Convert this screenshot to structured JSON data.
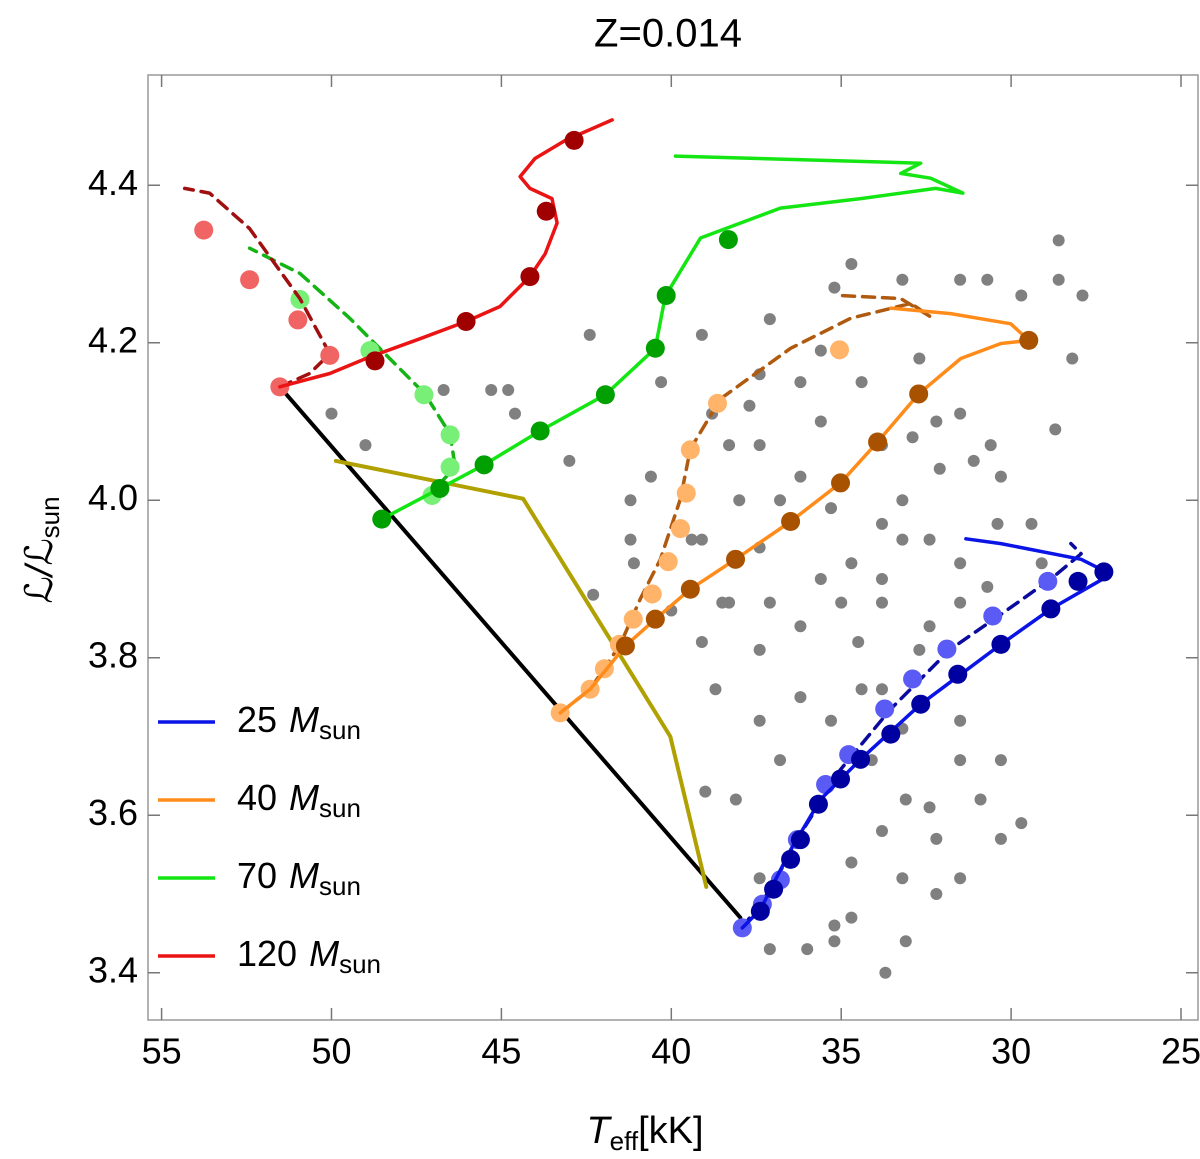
{
  "chart_data": {
    "type": "line",
    "title": "Z=0.014",
    "x_label": {
      "symbol": "T",
      "sub": "eff",
      "unit": "[kK]"
    },
    "y_label": {
      "symbol": "ℒ/ℒ",
      "sub": "sun"
    },
    "xlim": [
      55.4,
      24.5
    ],
    "ylim": [
      3.34,
      4.54
    ],
    "xticks": [
      55,
      50,
      45,
      40,
      35,
      30,
      25
    ],
    "yticks": [
      3.4,
      3.6,
      3.8,
      {
        "value": 4,
        "label": "4.0"
      },
      4.2,
      4.4
    ],
    "legend": "lower left",
    "legend_unit": "M",
    "legend_unit_sub": "sun",
    "scatter": {
      "color": "#808080",
      "x": [
        50.0,
        49.0,
        46.7,
        45.3,
        44.8,
        44.6,
        43.0,
        42.4,
        42.3,
        41.2,
        41.1,
        39.1,
        40.3,
        38.8,
        37.4,
        37.4,
        36.2,
        35.2,
        34.7,
        33.2,
        31.5,
        30.7,
        29.7,
        28.6,
        28.6,
        27.9,
        28.2,
        28.7,
        30.3,
        30.4,
        32.4,
        33.2,
        37.4,
        39.1,
        38.5,
        37.4,
        38.7,
        39.0,
        38.1,
        37.4,
        37.1,
        36.0,
        35.2,
        34.7,
        35.2,
        33.1,
        33.7,
        32.2,
        31.5,
        32.2,
        30.9,
        30.3,
        31.5,
        32.4,
        33.1,
        33.8,
        34.4,
        32.7,
        33.8,
        35.0,
        36.2,
        36.2,
        35.3,
        37.4,
        36.8,
        34.1,
        33.8,
        33.2,
        34.7,
        31.5,
        30.7,
        31.5,
        33.2,
        33.8,
        35.3,
        36.8,
        38.0,
        35.6,
        33.8,
        32.9,
        32.2,
        31.5,
        31.1,
        30.6,
        32.1,
        34.4,
        35.6,
        37.1,
        38.3,
        40.6,
        41.2,
        40.0,
        39.1,
        38.3,
        37.1,
        34.7,
        33.8,
        29.7,
        30.3,
        31.5,
        29.1,
        29.4,
        33.2,
        35.6,
        36.2,
        37.7,
        39.4,
        32.4,
        34.5,
        32.7
      ],
      "y": [
        4.11,
        4.07,
        4.14,
        4.14,
        4.14,
        4.11,
        4.05,
        4.21,
        3.88,
        3.95,
        3.92,
        4.21,
        4.15,
        4.11,
        4.16,
        4.07,
        4.15,
        4.27,
        4.3,
        4.28,
        4.28,
        4.28,
        4.26,
        4.28,
        4.33,
        4.26,
        4.18,
        4.09,
        4.03,
        3.97,
        3.95,
        3.95,
        3.94,
        3.95,
        3.87,
        3.81,
        3.76,
        3.63,
        3.62,
        3.52,
        3.43,
        3.43,
        3.46,
        3.47,
        3.44,
        3.44,
        3.4,
        3.5,
        3.52,
        3.57,
        3.62,
        3.67,
        3.67,
        3.61,
        3.62,
        3.76,
        3.76,
        3.81,
        3.87,
        3.87,
        3.84,
        3.75,
        3.72,
        3.72,
        3.67,
        3.67,
        3.58,
        3.52,
        3.54,
        3.87,
        3.89,
        3.92,
        4.0,
        3.97,
        3.99,
        4.0,
        4.0,
        4.1,
        4.07,
        4.08,
        4.1,
        4.11,
        4.05,
        4.07,
        4.04,
        4.15,
        4.19,
        4.23,
        4.07,
        4.03,
        4.0,
        3.86,
        3.82,
        3.87,
        3.87,
        3.92,
        3.9,
        3.59,
        3.57,
        3.72,
        3.92,
        3.97,
        3.71,
        3.9,
        4.03,
        4.12,
        3.95,
        3.84,
        3.82,
        4.18
      ]
    },
    "lines": [
      {
        "color": "#000000",
        "x": [
          51.52,
          37.97
        ],
        "y": [
          4.144,
          3.47
        ]
      },
      {
        "color": "#b0a000",
        "x": [
          49.87,
          44.36,
          40.03,
          38.97
        ],
        "y": [
          4.05,
          4.002,
          3.7,
          3.509
        ]
      }
    ],
    "series": [
      {
        "name": "25",
        "color": "#0a14e6",
        "marker_color": "#0000a0",
        "x": [
          37.91,
          37.38,
          36.49,
          35.61,
          34.43,
          32.66,
          31.48,
          30.3,
          28.83,
          27.06,
          27.94,
          30.3,
          31.33
        ],
        "y": [
          3.457,
          3.48,
          3.556,
          3.62,
          3.671,
          3.741,
          3.779,
          3.817,
          3.862,
          3.906,
          3.925,
          3.945,
          3.951
        ],
        "markers": {
          "x": [
            37.38,
            36.99,
            36.49,
            36.2,
            35.67,
            35.02,
            34.43,
            33.54,
            32.66,
            31.57,
            30.3,
            28.83,
            28.03,
            27.27
          ],
          "y": [
            3.478,
            3.506,
            3.544,
            3.569,
            3.614,
            3.646,
            3.671,
            3.703,
            3.741,
            3.779,
            3.817,
            3.862,
            3.897,
            3.909
          ]
        },
        "dashed": {
          "color": "#0a0aa0",
          "x": [
            37.91,
            37.08,
            36.2,
            35.02,
            33.54,
            31.78,
            30.3,
            28.83,
            27.94,
            28.24
          ],
          "y": [
            3.457,
            3.506,
            3.576,
            3.658,
            3.735,
            3.811,
            3.855,
            3.9,
            3.932,
            3.945
          ],
          "markers": {
            "color": "#5a5af5",
            "x": [
              37.91,
              37.32,
              36.79,
              36.29,
              35.46,
              34.78,
              33.72,
              32.9,
              31.89,
              30.54,
              28.92
            ],
            "y": [
              3.457,
              3.487,
              3.518,
              3.569,
              3.639,
              3.677,
              3.735,
              3.773,
              3.811,
              3.853,
              3.897
            ]
          }
        }
      },
      {
        "name": "40",
        "color": "#ff8c1a",
        "marker_color": "#a85200",
        "x": [
          43.27,
          42.39,
          41.35,
          40.47,
          39.44,
          38.11,
          36.49,
          35.02,
          33.93,
          32.72,
          31.48,
          30.3,
          29.48,
          30.01,
          31.78,
          33.54
        ],
        "y": [
          3.73,
          3.76,
          3.815,
          3.849,
          3.887,
          3.925,
          3.973,
          4.022,
          4.074,
          4.135,
          4.18,
          4.199,
          4.203,
          4.224,
          4.237,
          4.244
        ],
        "markers": {
          "x": [
            41.35,
            40.47,
            39.44,
            38.11,
            36.49,
            35.02,
            33.93,
            32.72,
            29.48
          ],
          "y": [
            3.815,
            3.849,
            3.887,
            3.925,
            3.973,
            4.022,
            4.074,
            4.135,
            4.203
          ]
        },
        "dashed": {
          "color": "#b05a10",
          "x": [
            43.27,
            42.39,
            41.5,
            40.91,
            40.32,
            39.73,
            39.44,
            38.55,
            36.49,
            34.72,
            32.95,
            32.37,
            33.25,
            35.02
          ],
          "y": [
            3.73,
            3.76,
            3.817,
            3.875,
            3.925,
            4.002,
            4.065,
            4.129,
            4.193,
            4.231,
            4.25,
            4.233,
            4.256,
            4.26
          ],
          "markers": {
            "color": "#ffb469",
            "x": [
              43.27,
              42.39,
              41.97,
              41.53,
              41.12,
              40.56,
              40.09,
              39.73,
              39.56,
              39.44,
              38.64,
              35.05
            ],
            "y": [
              3.73,
              3.76,
              3.786,
              3.817,
              3.849,
              3.881,
              3.922,
              3.964,
              4.009,
              4.064,
              4.123,
              4.191
            ]
          }
        }
      },
      {
        "name": "70",
        "color": "#14e614",
        "marker_color": "#00a000",
        "x": [
          48.52,
          46.81,
          45.51,
          43.86,
          41.94,
          40.47,
          40.18,
          39.14,
          36.79,
          34.43,
          32.22,
          31.42,
          32.37,
          33.25,
          32.66,
          39.88
        ],
        "y": [
          3.976,
          4.015,
          4.045,
          4.088,
          4.134,
          4.193,
          4.259,
          4.333,
          4.371,
          4.383,
          4.396,
          4.39,
          4.409,
          4.415,
          4.428,
          4.437
        ],
        "markers": {
          "x": [
            48.52,
            46.81,
            45.51,
            43.86,
            41.94,
            40.47,
            40.15,
            38.32
          ],
          "y": [
            3.976,
            4.015,
            4.045,
            4.088,
            4.134,
            4.193,
            4.26,
            4.331
          ]
        },
        "dashed": {
          "color": "#14b414",
          "x": [
            47.1,
            46.36,
            46.51,
            47.25,
            47.99,
            49.46,
            50.93,
            52.41
          ],
          "y": [
            4.008,
            4.042,
            4.084,
            4.135,
            4.167,
            4.231,
            4.288,
            4.32
          ],
          "markers": {
            "color": "#78f078",
            "x": [
              47.04,
              46.51,
              46.51,
              47.28,
              48.87,
              50.93
            ],
            "y": [
              4.006,
              4.042,
              4.083,
              4.134,
              4.19,
              4.255
            ]
          }
        }
      },
      {
        "name": "120",
        "color": "#eb1414",
        "marker_color": "#a00000",
        "x": [
          51.52,
          50.05,
          48.87,
          47.4,
          46.04,
          45.04,
          44.16,
          43.71,
          43.36,
          43.51,
          44.16,
          44.45,
          44.01,
          43.12,
          41.74
        ],
        "y": [
          4.144,
          4.161,
          4.182,
          4.205,
          4.227,
          4.246,
          4.284,
          4.313,
          4.352,
          4.383,
          4.396,
          4.411,
          4.434,
          4.457,
          4.483
        ],
        "markers": {
          "x": [
            48.72,
            46.04,
            44.16,
            43.68,
            42.86
          ],
          "y": [
            4.177,
            4.227,
            4.284,
            4.367,
            4.457
          ]
        },
        "dashed": {
          "color": "#a01010",
          "x": [
            51.52,
            50.64,
            50.05,
            50.93,
            52.41,
            53.59,
            54.32
          ],
          "y": [
            4.144,
            4.161,
            4.186,
            4.256,
            4.345,
            4.39,
            4.396
          ],
          "markers": {
            "color": "#f06464",
            "x": [
              53.76,
              52.41,
              50.99,
              50.05,
              51.52
            ],
            "y": [
              4.343,
              4.28,
              4.229,
              4.184,
              4.144
            ]
          }
        }
      }
    ]
  }
}
